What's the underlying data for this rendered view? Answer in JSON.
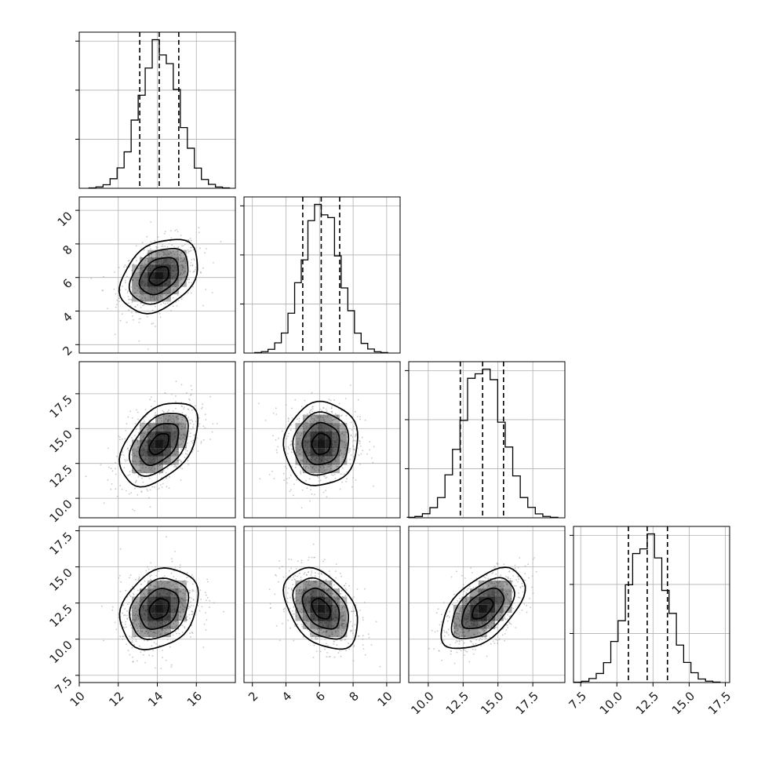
{
  "chart_data": {
    "type": "corner",
    "parameters": [
      {
        "range": [
          10,
          18
        ],
        "ticks": [
          10,
          12,
          14,
          16
        ],
        "tick_labels": [
          "10",
          "12",
          "14",
          "16"
        ],
        "mean": 14.1,
        "std": 1.0,
        "quantiles": [
          13.1,
          14.1,
          15.1
        ]
      },
      {
        "range": [
          1.5,
          10.8
        ],
        "ticks": [
          2,
          4,
          6,
          8,
          10
        ],
        "tick_labels": [
          "2",
          "4",
          "6",
          "8",
          "10"
        ],
        "mean": 6.1,
        "std": 1.1,
        "quantiles": [
          5.0,
          6.1,
          7.2
        ]
      },
      {
        "range": [
          8.6,
          19.8
        ],
        "ticks": [
          10.0,
          12.5,
          15.0,
          17.5
        ],
        "tick_labels": [
          "10.0",
          "12.5",
          "15.0",
          "17.5"
        ],
        "mean": 13.9,
        "std": 1.5,
        "quantiles": [
          12.3,
          13.9,
          15.4
        ]
      },
      {
        "range": [
          7.0,
          17.8
        ],
        "ticks": [
          7.5,
          10.0,
          12.5,
          15.0,
          17.5
        ],
        "tick_labels": [
          "7.5",
          "10.0",
          "12.5",
          "15.0",
          "17.5"
        ],
        "mean": 12.1,
        "std": 1.4,
        "quantiles": [
          10.8,
          12.1,
          13.5
        ]
      }
    ],
    "correlations": {
      "1-0": 0.35,
      "2-0": 0.45,
      "2-1": 0.05,
      "3-0": 0.25,
      "3-1": -0.4,
      "3-2": 0.55
    },
    "histogram_bins": 20,
    "contour_levels_sigma": [
      0.5,
      1.0,
      1.5,
      2.0
    ],
    "grid": true,
    "colors": {
      "hist": "#000000",
      "density": "#000000",
      "points": "#a0a0a0"
    }
  }
}
